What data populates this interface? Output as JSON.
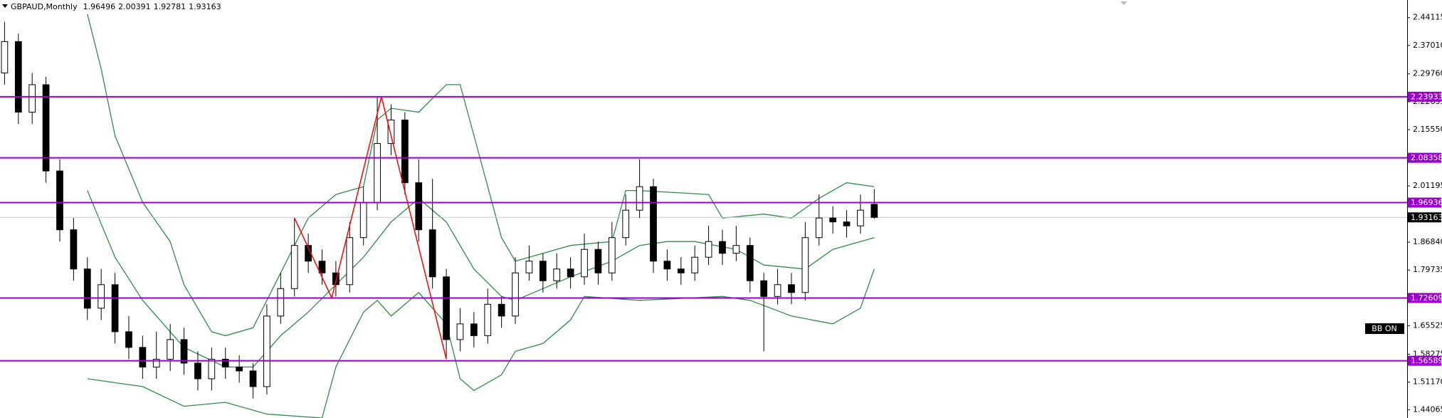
{
  "chart_data": {
    "type": "candlestick",
    "title": "GBPAUD,Monthly",
    "xlim": [
      -0.33,
      101.6
    ],
    "ylim": [
      1.42,
      2.486
    ],
    "yticks": [
      2.44115,
      {
        "value": 2.3701,
        "label": "2.37010"
      },
      {
        "value": 2.2976,
        "label": "2.29760"
      },
      2.22655,
      {
        "value": 2.1555,
        "label": "2.15550"
      },
      2.01195,
      {
        "value": 1.8684,
        "label": "1.86840"
      },
      1.79735,
      1.65525,
      1.58275,
      {
        "value": 1.5117,
        "label": "1.51170"
      },
      1.44065
    ],
    "up_color": "#ffffff",
    "down_color": "#000000",
    "candles": [
      [
        2.3,
        2.43,
        2.27,
        2.38
      ],
      [
        2.38,
        2.4,
        2.17,
        2.2
      ],
      [
        2.2,
        2.3,
        2.17,
        2.27
      ],
      [
        2.27,
        2.29,
        2.02,
        2.05
      ],
      [
        2.05,
        2.08,
        1.87,
        1.9
      ],
      [
        1.9,
        1.93,
        1.77,
        1.8
      ],
      [
        1.8,
        1.83,
        1.67,
        1.7
      ],
      [
        1.7,
        1.8,
        1.67,
        1.76
      ],
      [
        1.76,
        1.79,
        1.61,
        1.64
      ],
      [
        1.64,
        1.68,
        1.57,
        1.6
      ],
      [
        1.6,
        1.63,
        1.52,
        1.55
      ],
      [
        1.55,
        1.64,
        1.52,
        1.57
      ],
      [
        1.57,
        1.66,
        1.54,
        1.62
      ],
      [
        1.62,
        1.65,
        1.53,
        1.56
      ],
      [
        1.56,
        1.59,
        1.49,
        1.52
      ],
      [
        1.52,
        1.6,
        1.49,
        1.57
      ],
      [
        1.57,
        1.6,
        1.52,
        1.55
      ],
      [
        1.55,
        1.58,
        1.51,
        1.54
      ],
      [
        1.54,
        1.56,
        1.47,
        1.5
      ],
      [
        1.5,
        1.71,
        1.48,
        1.68
      ],
      [
        1.68,
        1.79,
        1.66,
        1.75
      ],
      [
        1.75,
        1.93,
        1.73,
        1.86
      ],
      [
        1.86,
        1.89,
        1.79,
        1.82
      ],
      [
        1.82,
        1.85,
        1.76,
        1.79
      ],
      [
        1.79,
        1.82,
        1.73,
        1.76
      ],
      [
        1.76,
        1.92,
        1.74,
        1.88
      ],
      [
        1.88,
        2.01,
        1.86,
        1.97
      ],
      [
        1.97,
        2.24,
        1.95,
        2.12
      ],
      [
        2.12,
        2.22,
        2.09,
        2.18
      ],
      [
        2.18,
        2.2,
        1.99,
        2.02
      ],
      [
        2.02,
        2.08,
        1.87,
        1.9
      ],
      [
        1.9,
        2.03,
        1.75,
        1.78
      ],
      [
        1.78,
        1.8,
        1.57,
        1.62
      ],
      [
        1.62,
        1.7,
        1.59,
        1.66
      ],
      [
        1.66,
        1.69,
        1.6,
        1.63
      ],
      [
        1.63,
        1.75,
        1.61,
        1.71
      ],
      [
        1.71,
        1.73,
        1.65,
        1.68
      ],
      [
        1.68,
        1.83,
        1.66,
        1.79
      ],
      [
        1.79,
        1.86,
        1.77,
        1.82
      ],
      [
        1.82,
        1.84,
        1.74,
        1.77
      ],
      [
        1.77,
        1.84,
        1.75,
        1.8
      ],
      [
        1.8,
        1.83,
        1.75,
        1.78
      ],
      [
        1.78,
        1.89,
        1.76,
        1.85
      ],
      [
        1.85,
        1.87,
        1.76,
        1.79
      ],
      [
        1.79,
        1.92,
        1.77,
        1.88
      ],
      [
        1.88,
        1.99,
        1.86,
        1.95
      ],
      [
        1.95,
        2.08,
        1.93,
        2.01
      ],
      [
        2.01,
        2.03,
        1.79,
        1.82
      ],
      [
        1.82,
        1.85,
        1.77,
        1.8
      ],
      [
        1.8,
        1.83,
        1.76,
        1.79
      ],
      [
        1.79,
        1.86,
        1.77,
        1.83
      ],
      [
        1.83,
        1.91,
        1.81,
        1.87
      ],
      [
        1.87,
        1.9,
        1.81,
        1.84
      ],
      [
        1.84,
        1.91,
        1.82,
        1.86
      ],
      [
        1.86,
        1.88,
        1.74,
        1.77
      ],
      [
        1.77,
        1.79,
        1.59,
        1.73
      ],
      [
        1.73,
        1.8,
        1.71,
        1.76
      ],
      [
        1.76,
        1.79,
        1.71,
        1.74
      ],
      [
        1.74,
        1.92,
        1.72,
        1.88
      ],
      [
        1.88,
        1.99,
        1.86,
        1.93
      ],
      [
        1.93,
        1.96,
        1.89,
        1.92
      ],
      [
        1.92,
        1.95,
        1.88,
        1.91
      ],
      [
        1.91,
        1.99,
        1.89,
        1.95
      ],
      [
        1.96496,
        2.00391,
        1.92781,
        1.93163
      ]
    ],
    "bands": [
      {
        "color": "#2e8b4a",
        "x": [
          6,
          7,
          8,
          10,
          12,
          13,
          15,
          16,
          18,
          20,
          22,
          24,
          26,
          27,
          28,
          30,
          32,
          33,
          34,
          36,
          37,
          39,
          41,
          44,
          45,
          46,
          51,
          52,
          55,
          57,
          59,
          61,
          63
        ],
        "values": [
          2.45,
          2.31,
          2.14,
          1.97,
          1.87,
          1.76,
          1.64,
          1.63,
          1.65,
          1.79,
          1.93,
          1.99,
          2.01,
          2.18,
          2.21,
          2.2,
          2.27,
          2.27,
          2.14,
          1.88,
          1.82,
          1.84,
          1.86,
          1.87,
          2.0,
          2.0,
          1.99,
          1.93,
          1.94,
          1.93,
          1.98,
          2.02,
          2.01
        ]
      },
      {
        "color": "#2e8b4a",
        "x": [
          6,
          8,
          10,
          13,
          16,
          18,
          20,
          22,
          24,
          26,
          28,
          30,
          32,
          34,
          36,
          37,
          39,
          41,
          44,
          46,
          48,
          50,
          53,
          55,
          58,
          60,
          63
        ],
        "values": [
          2.0,
          1.83,
          1.72,
          1.6,
          1.55,
          1.55,
          1.63,
          1.69,
          1.76,
          1.83,
          1.92,
          1.98,
          1.92,
          1.8,
          1.73,
          1.72,
          1.75,
          1.78,
          1.82,
          1.86,
          1.87,
          1.87,
          1.85,
          1.81,
          1.8,
          1.85,
          1.88
        ]
      },
      {
        "color": "#2e8b4a",
        "x": [
          6,
          8,
          10,
          13,
          16,
          19,
          23,
          24,
          26,
          27,
          28,
          30,
          32,
          33,
          34,
          36,
          37,
          39,
          41,
          42,
          46,
          52,
          54,
          57,
          60,
          62,
          63
        ],
        "values": [
          1.52,
          1.51,
          1.5,
          1.45,
          1.46,
          1.43,
          1.42,
          1.55,
          1.69,
          1.72,
          1.68,
          1.74,
          1.66,
          1.52,
          1.49,
          1.53,
          1.59,
          1.61,
          1.67,
          1.73,
          1.72,
          1.73,
          1.72,
          1.68,
          1.66,
          1.7,
          1.8
        ]
      }
    ],
    "zigzag": {
      "color": "#ff0000",
      "x": [
        21,
        23.7,
        27.3,
        32
      ],
      "values": [
        1.93,
        1.72609,
        2.23933,
        1.57
      ]
    },
    "levels": {
      "color": "#9900cc",
      "values": [
        2.23933,
        2.08358,
        1.96936,
        1.72609,
        1.56589
      ]
    },
    "indicator_label": "BB ON"
  }
}
